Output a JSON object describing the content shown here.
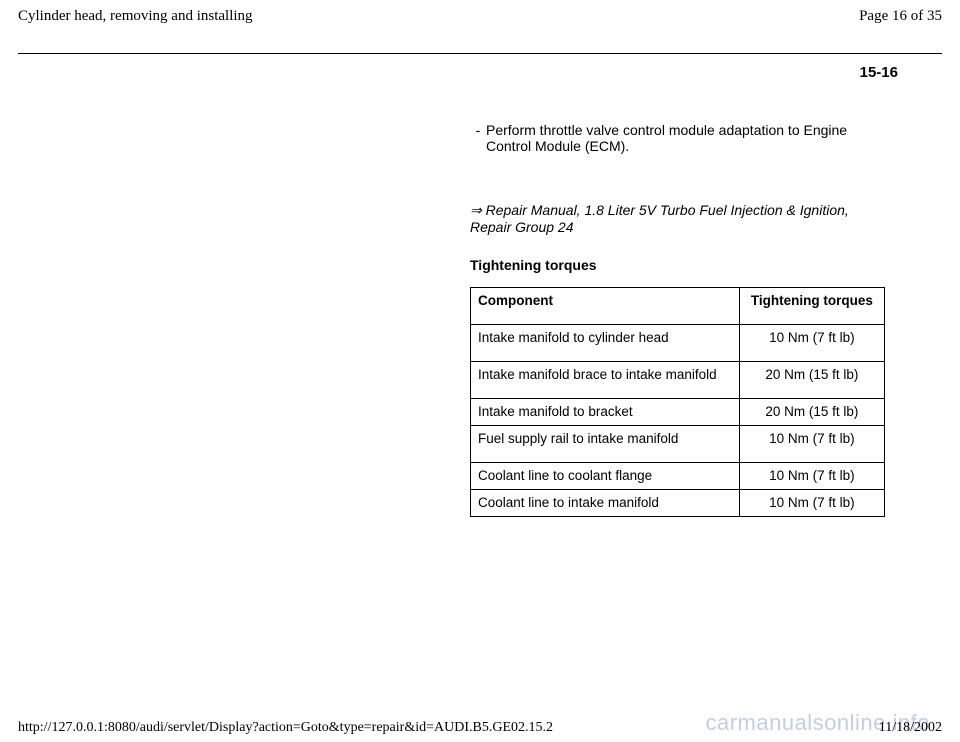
{
  "header": {
    "title": "Cylinder head, removing and installing",
    "page_label": "Page 16 of 35"
  },
  "page_ref": "15-16",
  "bullet": {
    "marker": "-",
    "text": "Perform throttle valve control module adaptation to Engine Control Module (ECM)."
  },
  "reference": {
    "arrow": "⇒",
    "text": "Repair Manual, 1.8 Liter 5V Turbo Fuel Injection & Ignition, Repair Group 24"
  },
  "section_heading": "Tightening torques",
  "table": {
    "columns": [
      "Component",
      "Tightening torques"
    ],
    "rows": [
      [
        "Intake manifold to cylinder head",
        "10 Nm (7 ft lb)"
      ],
      [
        "Intake manifold brace to intake manifold",
        "20 Nm (15 ft lb)"
      ],
      [
        "Intake manifold to bracket",
        "20 Nm (15 ft lb)"
      ],
      [
        "Fuel supply rail to intake manifold",
        "10 Nm (7 ft lb)"
      ],
      [
        "Coolant line to coolant flange",
        "10 Nm (7 ft lb)"
      ],
      [
        "Coolant line to intake manifold",
        "10 Nm (7 ft lb)"
      ]
    ]
  },
  "footer": {
    "url": "http://127.0.0.1:8080/audi/servlet/Display?action=Goto&type=repair&id=AUDI.B5.GE02.15.2",
    "date": "11/18/2002"
  },
  "watermark": "carmanualsonline.info"
}
